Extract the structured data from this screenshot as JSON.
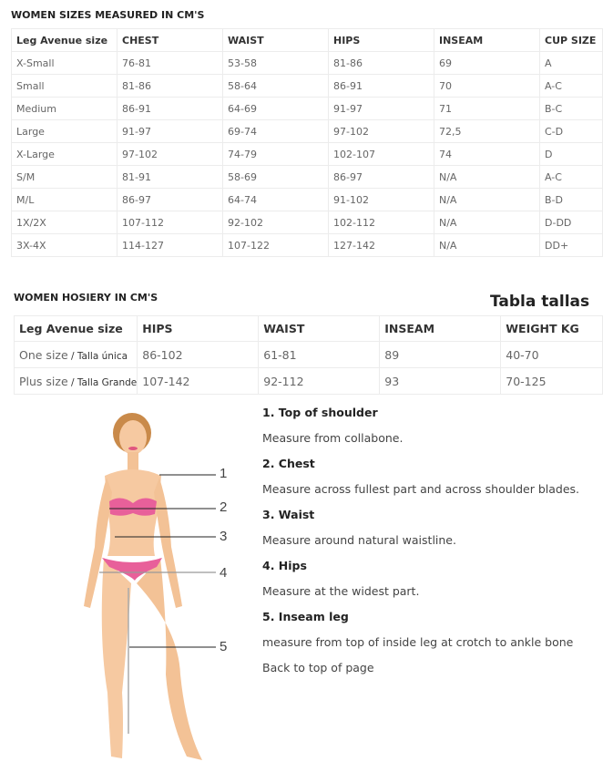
{
  "sizes": {
    "title": "WOMEN SIZES MEASURED IN CM'S",
    "headers": [
      "Leg Avenue size",
      "CHEST",
      "WAIST",
      "HIPS",
      "INSEAM",
      "CUP SIZE"
    ],
    "rows": [
      [
        "X-Small",
        "76-81",
        "53-58",
        "81-86",
        "69",
        "A"
      ],
      [
        "Small",
        "81-86",
        "58-64",
        "86-91",
        "70",
        "A-C"
      ],
      [
        "Medium",
        "86-91",
        "64-69",
        "91-97",
        "71",
        "B-C"
      ],
      [
        "Large",
        "91-97",
        "69-74",
        "97-102",
        "72,5",
        "C-D"
      ],
      [
        "X-Large",
        "97-102",
        "74-79",
        "102-107",
        "74",
        "D"
      ],
      [
        "S/M",
        "81-91",
        "58-69",
        "86-97",
        "N/A",
        "A-C"
      ],
      [
        "M/L",
        "86-97",
        "64-74",
        "91-102",
        "N/A",
        "B-D"
      ],
      [
        "1X/2X",
        "107-112",
        "92-102",
        "102-112",
        "N/A",
        "D-DD"
      ],
      [
        "3X-4X",
        "114-127",
        "107-122",
        "127-142",
        "N/A",
        "DD+"
      ]
    ]
  },
  "hosiery": {
    "title": "WOMEN HOSIERY IN CM'S",
    "caption": "Tabla tallas",
    "headers": [
      "Leg Avenue size",
      "HIPS",
      "WAIST",
      "INSEAM",
      "WEIGHT KG"
    ],
    "rows": [
      {
        "size": "One size",
        "note": " / Talla única",
        "cells": [
          "86-102",
          "61-81",
          "89",
          "40-70"
        ]
      },
      {
        "size": "Plus size",
        "note": " / Talla Grande",
        "cells": [
          "107-142",
          "92-112",
          "93",
          "70-125"
        ]
      }
    ]
  },
  "figure": {
    "labels": [
      "1",
      "2",
      "3",
      "4",
      "5"
    ]
  },
  "instructions": [
    {
      "title": "1. Top of shoulder",
      "text": "Measure from collabone."
    },
    {
      "title": "2. Chest",
      "text": "Measure across fullest part and across shoulder blades."
    },
    {
      "title": "3. Waist",
      "text": "Measure around natural waistline."
    },
    {
      "title": "4. Hips",
      "text": "Measure at the widest part."
    },
    {
      "title": "5. Inseam leg",
      "text": "measure from top of inside leg at crotch to ankle bone"
    }
  ],
  "back_link": "Back to top of page"
}
